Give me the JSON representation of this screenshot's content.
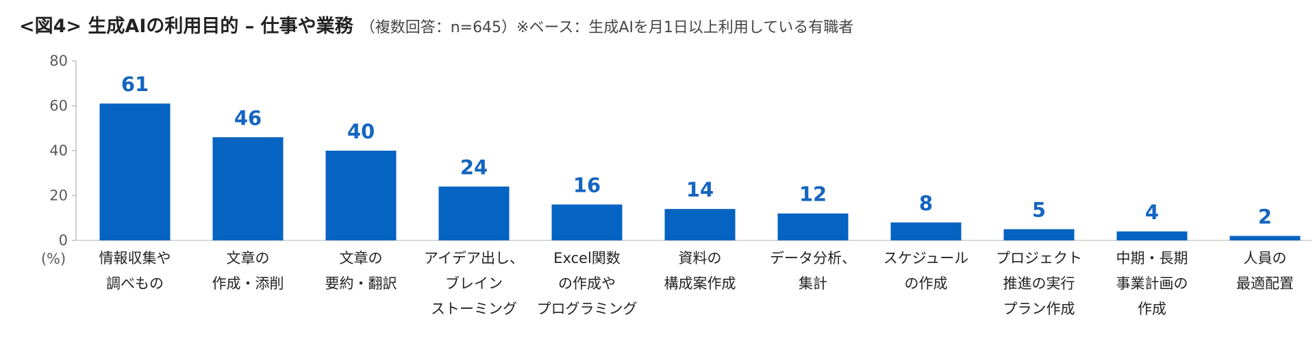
{
  "chart_data": {
    "type": "bar",
    "title": "<図4> 生成AIの利用目的 – 仕事や業務",
    "subtitle": "（複数回答：n=645）※ベース：生成AIを月1日以上利用している有職者",
    "ylabel": "(%)",
    "xlabel": "",
    "ylim": [
      0,
      80
    ],
    "yticks": [
      "0",
      "20",
      "40",
      "60",
      "80"
    ],
    "grid": false,
    "bar_color": "#0563c1",
    "label_color": "#1565c0",
    "categories": [
      [
        "情報収集や",
        "調べもの"
      ],
      [
        "文章の",
        "作成・添削"
      ],
      [
        "文章の",
        "要約・翻訳"
      ],
      [
        "アイデア出し、",
        "ブレイン",
        "ストーミング"
      ],
      [
        "Excel関数",
        "の作成や",
        "プログラミング"
      ],
      [
        "資料の",
        "構成案作成"
      ],
      [
        "データ分析、",
        "集計"
      ],
      [
        "スケジュール",
        "の作成"
      ],
      [
        "プロジェクト",
        "推進の実行",
        "プラン作成"
      ],
      [
        "中期・長期",
        "事業計画の",
        "作成"
      ],
      [
        "人員の",
        "最適配置"
      ]
    ],
    "values": [
      61,
      46,
      40,
      24,
      16,
      14,
      12,
      8,
      5,
      4,
      2
    ]
  }
}
